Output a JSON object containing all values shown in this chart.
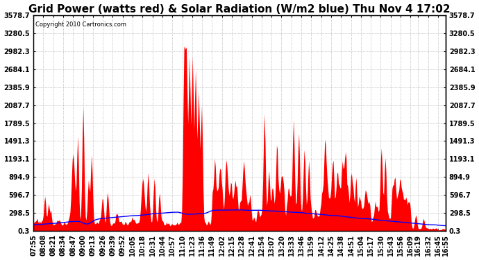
{
  "title": "Grid Power (watts red) & Solar Radiation (W/m2 blue) Thu Nov 4 17:02",
  "copyright": "Copyright 2010 Cartronics.com",
  "yticks": [
    0.3,
    298.5,
    596.7,
    894.9,
    1193.1,
    1491.3,
    1789.5,
    2087.7,
    2385.9,
    2684.1,
    2982.3,
    3280.5,
    3578.7
  ],
  "ymin": 0.3,
  "ymax": 3578.7,
  "bg_color": "white",
  "plot_bg": "white",
  "x_labels": [
    "07:55",
    "08:08",
    "08:21",
    "08:34",
    "08:47",
    "09:00",
    "09:13",
    "09:26",
    "09:39",
    "09:52",
    "10:05",
    "10:18",
    "10:31",
    "10:44",
    "10:57",
    "11:10",
    "11:23",
    "11:36",
    "11:49",
    "12:02",
    "12:15",
    "12:28",
    "12:41",
    "12:54",
    "13:07",
    "13:20",
    "13:33",
    "13:46",
    "13:59",
    "14:12",
    "14:25",
    "14:38",
    "14:51",
    "15:04",
    "15:17",
    "15:30",
    "15:43",
    "15:56",
    "16:09",
    "16:19",
    "16:32",
    "16:45",
    "16:55"
  ],
  "title_fontsize": 11,
  "label_fontsize": 7.0
}
